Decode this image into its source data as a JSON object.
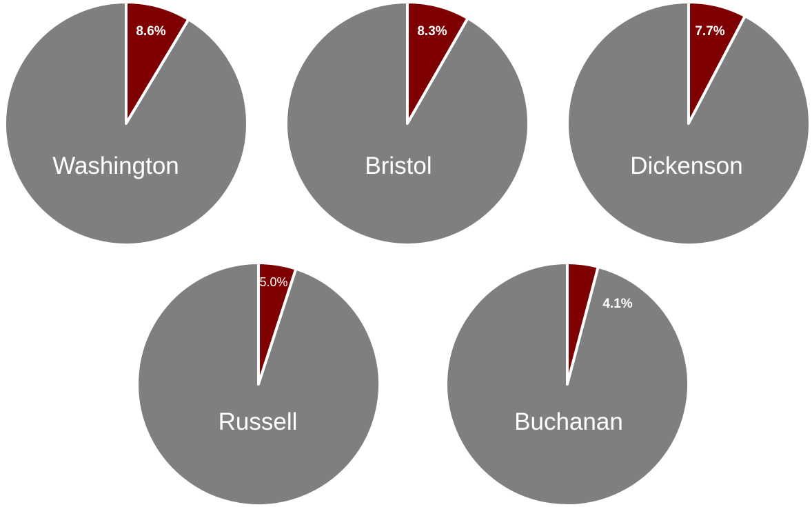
{
  "chart_data": [
    {
      "type": "pie",
      "title": "Washington",
      "categories": [
        "",
        ""
      ],
      "values": [
        8.6,
        91.4
      ],
      "value_labels": [
        "8.6%",
        ""
      ],
      "colors": [
        "#7f0000",
        "#7f7f7f"
      ]
    },
    {
      "type": "pie",
      "title": "Bristol",
      "categories": [
        "",
        ""
      ],
      "values": [
        8.3,
        91.7
      ],
      "value_labels": [
        "8.3%",
        ""
      ],
      "colors": [
        "#7f0000",
        "#7f7f7f"
      ]
    },
    {
      "type": "pie",
      "title": "Dickenson",
      "categories": [
        "",
        ""
      ],
      "values": [
        7.7,
        92.3
      ],
      "value_labels": [
        "7.7%",
        ""
      ],
      "colors": [
        "#7f0000",
        "#7f7f7f"
      ]
    },
    {
      "type": "pie",
      "title": "Russell",
      "categories": [
        "",
        ""
      ],
      "values": [
        5.0,
        95.0
      ],
      "value_labels": [
        "5.0%",
        ""
      ],
      "colors": [
        "#7f0000",
        "#7f7f7f"
      ]
    },
    {
      "type": "pie",
      "title": "Buchanan",
      "categories": [
        "",
        ""
      ],
      "values": [
        4.1,
        95.9
      ],
      "value_labels": [
        "4.1%",
        ""
      ],
      "colors": [
        "#7f0000",
        "#7f7f7f"
      ]
    }
  ]
}
